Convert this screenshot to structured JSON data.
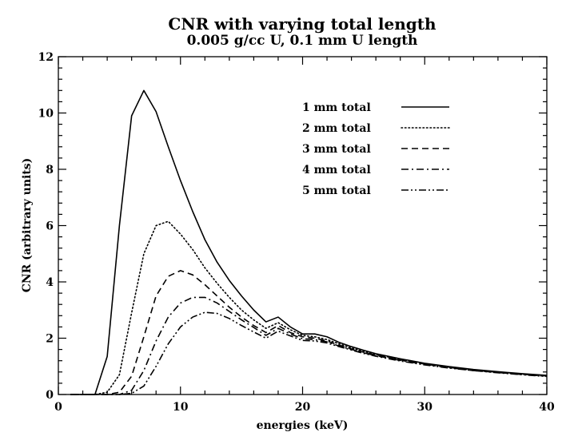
{
  "chart_data": {
    "type": "line",
    "title": "CNR with varying total length",
    "subtitle": "0.005 g/cc U, 0.1 mm U length",
    "xlabel": "energies (keV)",
    "ylabel": "CNR (arbitrary units)",
    "xlim": [
      0,
      40
    ],
    "ylim": [
      0,
      12
    ],
    "xticks": [
      0,
      10,
      20,
      30,
      40
    ],
    "yticks": [
      0,
      2,
      4,
      6,
      8,
      10,
      12
    ],
    "grid": false,
    "legend_position": "top-right",
    "series": [
      {
        "name": "1 mm total",
        "dash": "solid",
        "x": [
          1,
          2,
          3,
          4,
          5,
          6,
          7,
          8,
          9,
          10,
          11,
          12,
          13,
          14,
          15,
          16,
          17,
          18,
          19,
          20,
          21,
          22,
          23,
          24,
          25,
          26,
          28,
          30,
          32,
          34,
          36,
          38,
          40
        ],
        "y": [
          0,
          0,
          0,
          1.35,
          6.0,
          9.9,
          10.8,
          10.05,
          8.8,
          7.6,
          6.5,
          5.5,
          4.7,
          4.05,
          3.5,
          3.0,
          2.58,
          2.75,
          2.4,
          2.15,
          2.15,
          2.05,
          1.85,
          1.7,
          1.57,
          1.45,
          1.27,
          1.11,
          0.99,
          0.89,
          0.81,
          0.74,
          0.68
        ]
      },
      {
        "name": "2 mm total",
        "dash": "dotted",
        "x": [
          1,
          2,
          3,
          4,
          5,
          6,
          7,
          8,
          9,
          10,
          11,
          12,
          13,
          14,
          15,
          16,
          17,
          18,
          19,
          20,
          21,
          22,
          23,
          24,
          25,
          26,
          28,
          30,
          32,
          34,
          36,
          38,
          40
        ],
        "y": [
          0,
          0,
          0,
          0.08,
          0.7,
          2.9,
          5.0,
          6.0,
          6.15,
          5.7,
          5.15,
          4.5,
          3.95,
          3.45,
          3.0,
          2.65,
          2.35,
          2.55,
          2.3,
          2.1,
          2.05,
          1.95,
          1.8,
          1.65,
          1.53,
          1.42,
          1.25,
          1.09,
          0.97,
          0.87,
          0.8,
          0.73,
          0.67
        ]
      },
      {
        "name": "3 mm total",
        "dash": "dashed",
        "x": [
          1,
          2,
          3,
          4,
          5,
          6,
          7,
          8,
          9,
          10,
          11,
          12,
          13,
          14,
          15,
          16,
          17,
          18,
          19,
          20,
          21,
          22,
          23,
          24,
          25,
          26,
          28,
          30,
          32,
          34,
          36,
          38,
          40
        ],
        "y": [
          0,
          0,
          0,
          0,
          0.08,
          0.65,
          2.05,
          3.5,
          4.2,
          4.4,
          4.25,
          3.9,
          3.5,
          3.1,
          2.75,
          2.45,
          2.2,
          2.45,
          2.2,
          2.05,
          2.0,
          1.9,
          1.75,
          1.62,
          1.5,
          1.4,
          1.23,
          1.08,
          0.96,
          0.86,
          0.79,
          0.72,
          0.66
        ]
      },
      {
        "name": "4 mm total",
        "dash": "dash-dot",
        "x": [
          1,
          2,
          3,
          4,
          5,
          6,
          7,
          8,
          9,
          10,
          11,
          12,
          13,
          14,
          15,
          16,
          17,
          18,
          19,
          20,
          21,
          22,
          23,
          24,
          25,
          26,
          28,
          30,
          32,
          34,
          36,
          38,
          40
        ],
        "y": [
          0,
          0,
          0,
          0,
          0,
          0.15,
          0.85,
          1.9,
          2.75,
          3.25,
          3.45,
          3.45,
          3.25,
          2.95,
          2.65,
          2.38,
          2.1,
          2.35,
          2.15,
          1.98,
          1.95,
          1.87,
          1.72,
          1.6,
          1.48,
          1.38,
          1.21,
          1.07,
          0.95,
          0.85,
          0.78,
          0.71,
          0.65
        ]
      },
      {
        "name": "5 mm total",
        "dash": "dash-dot-dot",
        "x": [
          1,
          2,
          3,
          4,
          5,
          6,
          7,
          8,
          9,
          10,
          11,
          12,
          13,
          14,
          15,
          16,
          17,
          18,
          19,
          20,
          21,
          22,
          23,
          24,
          25,
          26,
          28,
          30,
          32,
          34,
          36,
          38,
          40
        ],
        "y": [
          0,
          0,
          0,
          0,
          0,
          0.04,
          0.3,
          1.0,
          1.8,
          2.4,
          2.75,
          2.92,
          2.88,
          2.7,
          2.45,
          2.22,
          2.0,
          2.25,
          2.08,
          1.92,
          1.9,
          1.83,
          1.7,
          1.58,
          1.46,
          1.36,
          1.19,
          1.05,
          0.94,
          0.85,
          0.77,
          0.7,
          0.64
        ]
      }
    ]
  }
}
